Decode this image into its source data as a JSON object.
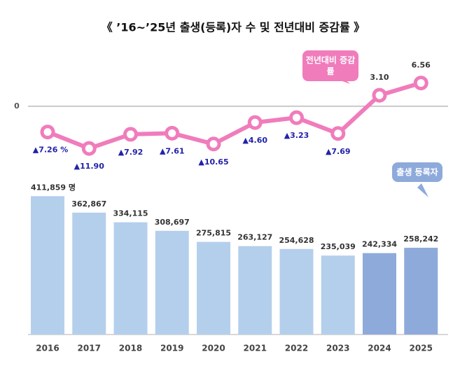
{
  "chart_data": {
    "type": "bar",
    "title": "《 ’16~’25년 출생(등록)자 수 및 전년대비 증감률 》",
    "categories": [
      "2016",
      "2017",
      "2018",
      "2019",
      "2020",
      "2021",
      "2022",
      "2023",
      "2024",
      "2025"
    ],
    "ylim": [
      0,
      450000
    ],
    "y2lim": [
      -18,
      12
    ],
    "y2ticks": [
      0
    ],
    "series": [
      {
        "name": "출생 등록자",
        "type": "bar",
        "color": "#8eaadb",
        "colors": [
          "#b4cfec",
          "#b4cfec",
          "#b4cfec",
          "#b4cfec",
          "#b4cfec",
          "#b4cfec",
          "#b4cfec",
          "#b4cfec",
          "#8eaadb",
          "#8eaadb"
        ],
        "values": [
          411859,
          362867,
          334115,
          308697,
          275815,
          263127,
          254628,
          235039,
          242334,
          258242
        ],
        "value_labels": [
          "411,859 명",
          "362,867",
          "334,115",
          "308,697",
          "275,815",
          "263,127",
          "254,628",
          "235,039",
          "242,334",
          "258,242"
        ]
      },
      {
        "name": "전년대비 증감률",
        "type": "line",
        "axis": "y2",
        "color": "#f07cbc",
        "values": [
          -7.26,
          -11.9,
          -7.92,
          -7.61,
          -10.65,
          -4.6,
          -3.23,
          -7.69,
          3.1,
          6.56
        ],
        "value_labels": [
          "▲7.26 %",
          "▲11.90",
          "▲7.92",
          "▲7.61",
          "▲10.65",
          "▲4.60",
          "▲3.23",
          "▲7.69",
          "3.10",
          "6.56"
        ]
      }
    ]
  }
}
